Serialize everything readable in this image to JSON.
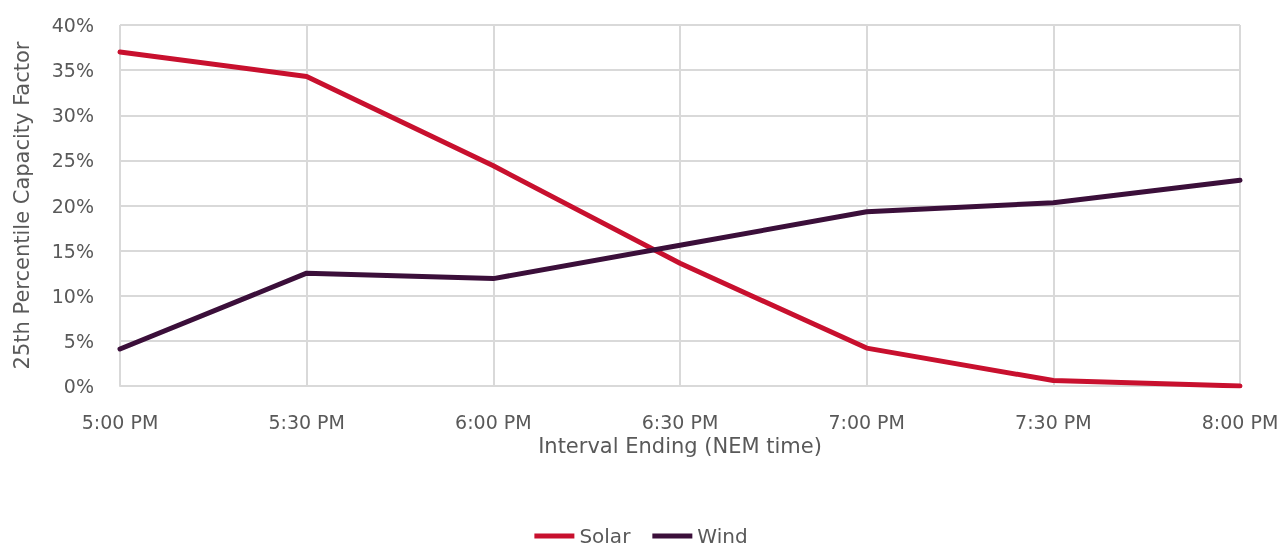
{
  "chart_data": {
    "type": "line",
    "xlabel": "Interval Ending (NEM time)",
    "ylabel": "25th Percentile Capacity Factor",
    "categories": [
      "5:00 PM",
      "5:30 PM",
      "6:00 PM",
      "6:30 PM",
      "7:00 PM",
      "7:30 PM",
      "8:00 PM"
    ],
    "series": [
      {
        "name": "Solar",
        "color": "#c8102e",
        "values": [
          37.0,
          34.3,
          24.4,
          13.6,
          4.2,
          0.6,
          0
        ]
      },
      {
        "name": "Wind",
        "color": "#3b0f3a",
        "values": [
          4.1,
          12.5,
          11.9,
          15.6,
          19.3,
          20.3,
          22.8
        ]
      }
    ],
    "ylim": [
      0,
      40
    ],
    "yticks": [
      {
        "value": 0,
        "label": "0%"
      },
      {
        "value": 5,
        "label": "5%"
      },
      {
        "value": 10,
        "label": "10%"
      },
      {
        "value": 15,
        "label": "15%"
      },
      {
        "value": 20,
        "label": "20%"
      },
      {
        "value": 25,
        "label": "25%"
      },
      {
        "value": 30,
        "label": "30%"
      },
      {
        "value": 35,
        "label": "35%"
      },
      {
        "value": 40,
        "label": "40%"
      }
    ],
    "grid": true,
    "legend": "bottom",
    "marker": "none",
    "line_style": "solid"
  }
}
